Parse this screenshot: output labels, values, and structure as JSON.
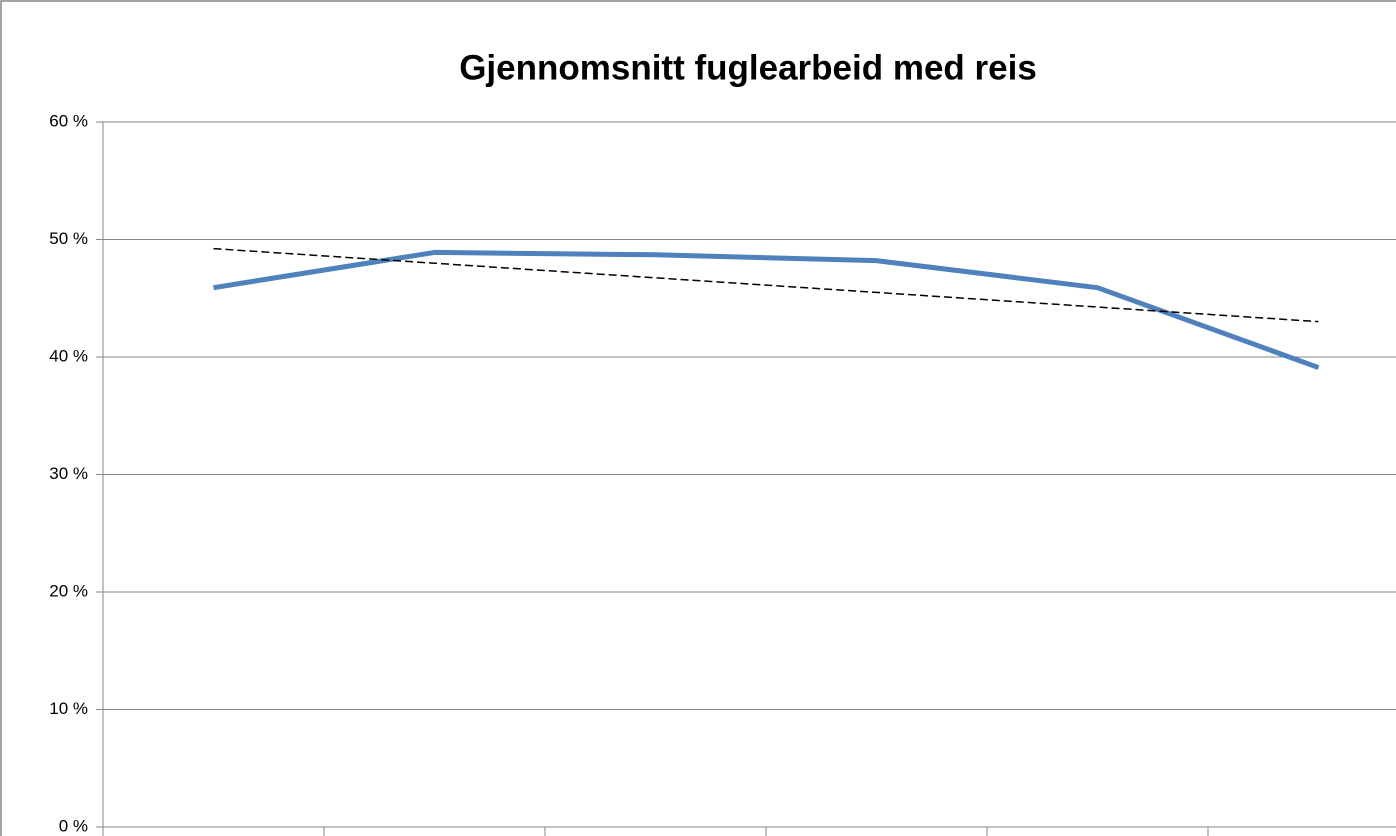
{
  "chart_data": {
    "type": "line",
    "title": "Gjennomsnitt fuglearbeid med reis",
    "categories": [
      null,
      null,
      null,
      null,
      null,
      null
    ],
    "series": [
      {
        "name": null,
        "color": "#4f81bd",
        "values": [
          45.9,
          48.9,
          48.7,
          48.2,
          45.9,
          39.1
        ]
      }
    ],
    "trendline": "linear",
    "trendline_color": "#000000",
    "ylim": [
      0,
      60
    ],
    "yticks": [
      {
        "value": 0,
        "label": "0 %"
      },
      {
        "value": 10,
        "label": "10 %"
      },
      {
        "value": 20,
        "label": "20 %"
      },
      {
        "value": 30,
        "label": "30 %"
      },
      {
        "value": 40,
        "label": "40 %"
      },
      {
        "value": 50,
        "label": "50 %"
      },
      {
        "value": 60,
        "label": "60 %"
      }
    ],
    "grid": true
  }
}
